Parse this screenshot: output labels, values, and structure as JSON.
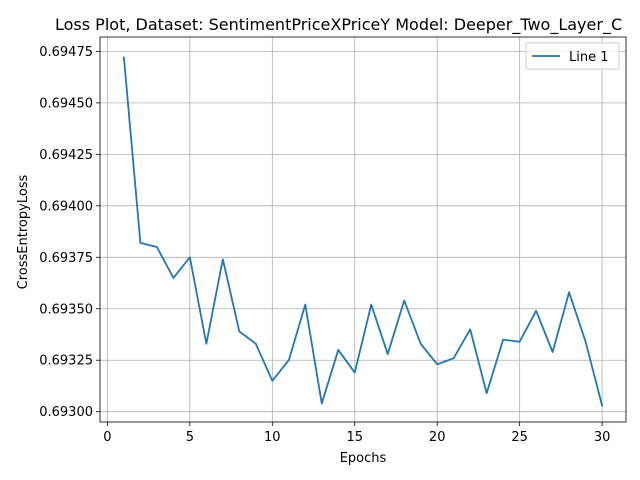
{
  "chart_data": {
    "type": "line",
    "title": "Loss Plot, Dataset: SentimentPriceXPriceY Model: Deeper_Two_Layer_C",
    "xlabel": "Epochs",
    "ylabel": "CrossEntropyLoss",
    "xlim": [
      -0.45,
      31.45
    ],
    "ylim": [
      0.69295,
      0.69482
    ],
    "xticks": [
      0,
      5,
      10,
      15,
      20,
      25,
      30
    ],
    "xtick_labels": [
      "0",
      "5",
      "10",
      "15",
      "20",
      "25",
      "30"
    ],
    "yticks": [
      0.693,
      0.69325,
      0.6935,
      0.69375,
      0.694,
      0.69425,
      0.6945,
      0.69475
    ],
    "ytick_labels": [
      "0.69300",
      "0.69325",
      "0.69350",
      "0.69375",
      "0.69400",
      "0.69425",
      "0.69450",
      "0.69475"
    ],
    "grid": true,
    "legend_position": "top-right",
    "series": [
      {
        "name": "Line 1",
        "color": "#1f77b4",
        "x": [
          1,
          2,
          3,
          4,
          5,
          6,
          7,
          8,
          9,
          10,
          11,
          12,
          13,
          14,
          15,
          16,
          17,
          18,
          19,
          20,
          21,
          22,
          23,
          24,
          25,
          26,
          27,
          28,
          29,
          30
        ],
        "y": [
          0.69472,
          0.69382,
          0.6938,
          0.69365,
          0.69375,
          0.69333,
          0.69374,
          0.69339,
          0.69333,
          0.69315,
          0.69325,
          0.69352,
          0.69304,
          0.6933,
          0.69319,
          0.69352,
          0.69328,
          0.69354,
          0.69333,
          0.69323,
          0.69326,
          0.6934,
          0.69309,
          0.69335,
          0.69334,
          0.69349,
          0.69329,
          0.69358,
          0.69334,
          0.69303
        ]
      }
    ]
  }
}
